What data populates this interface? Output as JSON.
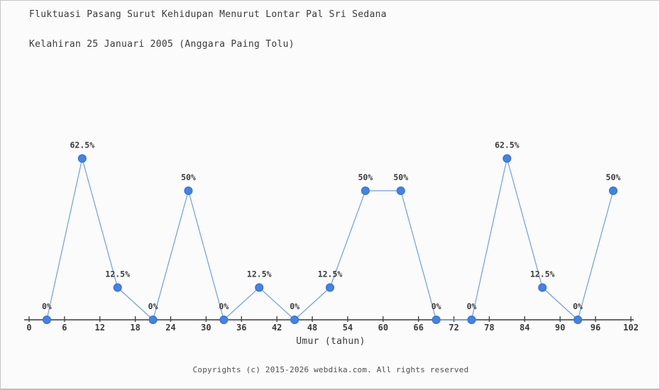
{
  "window": {
    "background": "#fbfbfb",
    "border_color": "#c6c6c6"
  },
  "header": {
    "title_line1": "Fluktuasi Pasang Surut Kehidupan Menurut Lontar Pal Sri Sedana",
    "title_line2": "Kelahiran 25 Januari 2005 (Anggara Paing Tolu)"
  },
  "chart_data": {
    "type": "line",
    "title": "Fluktuasi Pasang Surut Kehidupan Menurut Lontar Pal Sri Sedana Kelahiran 25 Januari 2005 (Anggara Paing Tolu)",
    "x": [
      3,
      9,
      15,
      21,
      27,
      33,
      39,
      45,
      51,
      57,
      63,
      69,
      75,
      81,
      87,
      93,
      99
    ],
    "values": [
      0,
      62.5,
      12.5,
      0,
      50,
      0,
      12.5,
      0,
      12.5,
      50,
      50,
      0,
      0,
      62.5,
      12.5,
      0,
      50
    ],
    "point_labels": [
      "0%",
      "62.5%",
      "12.5%",
      "0%",
      "50%",
      "0%",
      "12.5%",
      "0%",
      "12.5%",
      "50%",
      "50%",
      "0%",
      "0%",
      "62.5%",
      "12.5%",
      "0%",
      "50%"
    ],
    "xticks": [
      0,
      6,
      12,
      18,
      24,
      30,
      36,
      42,
      48,
      54,
      60,
      66,
      72,
      78,
      84,
      90,
      96,
      102
    ],
    "xlabel": "Umur (tahun)",
    "xlim": [
      0,
      102
    ],
    "ylim": [
      0,
      68.75
    ],
    "grid": false,
    "legend": null,
    "colors": {
      "line": "#6f9ee8",
      "marker_fill": "#4382e6",
      "marker_stroke": "#2e6fd4",
      "axis": "#3a3a3a",
      "tick_label": "#3a3a3a",
      "point_label": "#3a3a3a"
    }
  },
  "footer": {
    "copyright": "Copyrights (c) 2015-2026 webdika.com. All rights reserved"
  }
}
